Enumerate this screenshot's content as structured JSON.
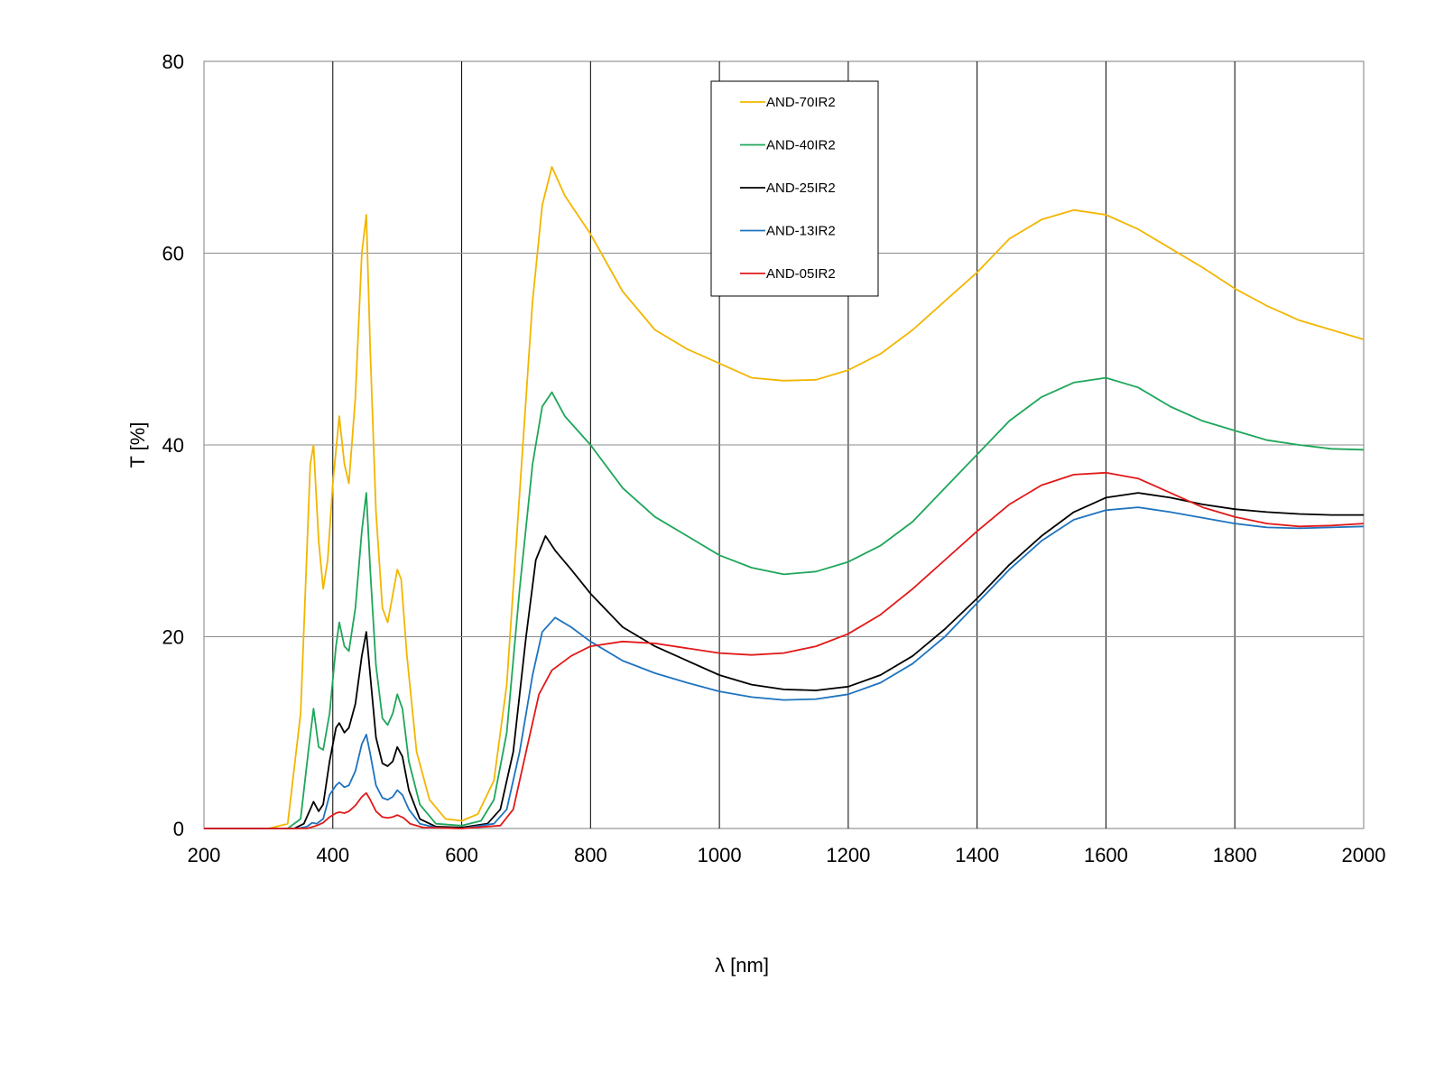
{
  "chart_data": {
    "type": "line",
    "title": "",
    "xlabel": "λ [nm]",
    "ylabel": "T [%]",
    "xlim": [
      200,
      2000
    ],
    "ylim": [
      0,
      80
    ],
    "xticks": [
      200,
      400,
      600,
      800,
      1000,
      1200,
      1400,
      1600,
      1800,
      2000
    ],
    "yticks": [
      0,
      20,
      40,
      60,
      80
    ],
    "grid": true,
    "legend_position": "top-center",
    "series": [
      {
        "name": "AND-70IR2",
        "color": "#f2b600",
        "points": [
          [
            200,
            0
          ],
          [
            300,
            0
          ],
          [
            330,
            0.5
          ],
          [
            350,
            12
          ],
          [
            365,
            38
          ],
          [
            370,
            40
          ],
          [
            378,
            30
          ],
          [
            385,
            25
          ],
          [
            392,
            28
          ],
          [
            400,
            36
          ],
          [
            410,
            43
          ],
          [
            418,
            38
          ],
          [
            425,
            36
          ],
          [
            435,
            45
          ],
          [
            445,
            60
          ],
          [
            452,
            64
          ],
          [
            458,
            50
          ],
          [
            467,
            33
          ],
          [
            477,
            23
          ],
          [
            485,
            21.5
          ],
          [
            492,
            24
          ],
          [
            500,
            27
          ],
          [
            506,
            26
          ],
          [
            515,
            18
          ],
          [
            530,
            8
          ],
          [
            550,
            3
          ],
          [
            575,
            1
          ],
          [
            600,
            0.8
          ],
          [
            625,
            1.5
          ],
          [
            650,
            5
          ],
          [
            670,
            15
          ],
          [
            690,
            35
          ],
          [
            710,
            55
          ],
          [
            725,
            65
          ],
          [
            740,
            69
          ],
          [
            760,
            66
          ],
          [
            800,
            62
          ],
          [
            850,
            56
          ],
          [
            900,
            52
          ],
          [
            950,
            50
          ],
          [
            1000,
            48.5
          ],
          [
            1050,
            47
          ],
          [
            1100,
            46.7
          ],
          [
            1150,
            46.8
          ],
          [
            1200,
            47.8
          ],
          [
            1250,
            49.5
          ],
          [
            1300,
            52
          ],
          [
            1350,
            55
          ],
          [
            1400,
            58
          ],
          [
            1450,
            61.5
          ],
          [
            1500,
            63.5
          ],
          [
            1550,
            64.5
          ],
          [
            1600,
            64
          ],
          [
            1650,
            62.5
          ],
          [
            1700,
            60.5
          ],
          [
            1750,
            58.5
          ],
          [
            1800,
            56.3
          ],
          [
            1850,
            54.5
          ],
          [
            1900,
            53
          ],
          [
            1950,
            52
          ],
          [
            2000,
            51
          ]
        ]
      },
      {
        "name": "AND-40IR2",
        "color": "#1ea65a",
        "points": [
          [
            200,
            0
          ],
          [
            330,
            0
          ],
          [
            350,
            1
          ],
          [
            362,
            8
          ],
          [
            370,
            12.5
          ],
          [
            378,
            8.5
          ],
          [
            385,
            8.2
          ],
          [
            395,
            12
          ],
          [
            405,
            19
          ],
          [
            410,
            21.5
          ],
          [
            418,
            19
          ],
          [
            425,
            18.5
          ],
          [
            435,
            23
          ],
          [
            445,
            31
          ],
          [
            452,
            35
          ],
          [
            458,
            27
          ],
          [
            467,
            17
          ],
          [
            477,
            11.5
          ],
          [
            485,
            10.8
          ],
          [
            493,
            12
          ],
          [
            500,
            14
          ],
          [
            508,
            12.5
          ],
          [
            518,
            7
          ],
          [
            535,
            2.5
          ],
          [
            560,
            0.5
          ],
          [
            600,
            0.3
          ],
          [
            630,
            0.8
          ],
          [
            650,
            3
          ],
          [
            670,
            10
          ],
          [
            690,
            25
          ],
          [
            710,
            38
          ],
          [
            725,
            44
          ],
          [
            740,
            45.5
          ],
          [
            760,
            43
          ],
          [
            800,
            40
          ],
          [
            850,
            35.5
          ],
          [
            900,
            32.5
          ],
          [
            950,
            30.5
          ],
          [
            1000,
            28.5
          ],
          [
            1050,
            27.2
          ],
          [
            1100,
            26.5
          ],
          [
            1150,
            26.8
          ],
          [
            1200,
            27.8
          ],
          [
            1250,
            29.5
          ],
          [
            1300,
            32
          ],
          [
            1350,
            35.5
          ],
          [
            1400,
            39
          ],
          [
            1450,
            42.5
          ],
          [
            1500,
            45
          ],
          [
            1550,
            46.5
          ],
          [
            1600,
            47
          ],
          [
            1650,
            46
          ],
          [
            1700,
            44
          ],
          [
            1750,
            42.5
          ],
          [
            1800,
            41.5
          ],
          [
            1850,
            40.5
          ],
          [
            1900,
            40
          ],
          [
            1950,
            39.6
          ],
          [
            2000,
            39.5
          ]
        ]
      },
      {
        "name": "AND-25IR2",
        "color": "#000000",
        "points": [
          [
            200,
            0
          ],
          [
            340,
            0
          ],
          [
            355,
            0.5
          ],
          [
            365,
            2
          ],
          [
            370,
            2.8
          ],
          [
            378,
            1.8
          ],
          [
            385,
            2.5
          ],
          [
            395,
            7
          ],
          [
            405,
            10.5
          ],
          [
            410,
            11
          ],
          [
            418,
            10
          ],
          [
            425,
            10.5
          ],
          [
            435,
            13
          ],
          [
            445,
            18
          ],
          [
            452,
            20.5
          ],
          [
            458,
            16
          ],
          [
            467,
            9.5
          ],
          [
            477,
            6.8
          ],
          [
            485,
            6.5
          ],
          [
            493,
            7
          ],
          [
            500,
            8.5
          ],
          [
            508,
            7.5
          ],
          [
            518,
            4
          ],
          [
            535,
            1
          ],
          [
            560,
            0.2
          ],
          [
            600,
            0.1
          ],
          [
            640,
            0.5
          ],
          [
            660,
            2
          ],
          [
            680,
            8
          ],
          [
            700,
            20
          ],
          [
            715,
            28
          ],
          [
            730,
            30.5
          ],
          [
            745,
            29
          ],
          [
            770,
            27
          ],
          [
            800,
            24.5
          ],
          [
            850,
            21
          ],
          [
            900,
            19
          ],
          [
            950,
            17.5
          ],
          [
            1000,
            16
          ],
          [
            1050,
            15
          ],
          [
            1100,
            14.5
          ],
          [
            1150,
            14.4
          ],
          [
            1200,
            14.8
          ],
          [
            1250,
            16
          ],
          [
            1300,
            18
          ],
          [
            1350,
            20.8
          ],
          [
            1400,
            24
          ],
          [
            1450,
            27.5
          ],
          [
            1500,
            30.5
          ],
          [
            1550,
            33
          ],
          [
            1600,
            34.5
          ],
          [
            1650,
            35
          ],
          [
            1700,
            34.5
          ],
          [
            1750,
            33.8
          ],
          [
            1800,
            33.3
          ],
          [
            1850,
            33
          ],
          [
            1900,
            32.8
          ],
          [
            1950,
            32.7
          ],
          [
            2000,
            32.7
          ]
        ]
      },
      {
        "name": "AND-13IR2",
        "color": "#1e73be",
        "points": [
          [
            200,
            0
          ],
          [
            345,
            0
          ],
          [
            360,
            0.2
          ],
          [
            368,
            0.6
          ],
          [
            375,
            0.5
          ],
          [
            385,
            1
          ],
          [
            395,
            3.5
          ],
          [
            405,
            4.5
          ],
          [
            410,
            4.8
          ],
          [
            418,
            4.3
          ],
          [
            425,
            4.5
          ],
          [
            435,
            6
          ],
          [
            445,
            8.8
          ],
          [
            452,
            9.8
          ],
          [
            458,
            7.8
          ],
          [
            467,
            4.5
          ],
          [
            477,
            3.2
          ],
          [
            485,
            3
          ],
          [
            493,
            3.3
          ],
          [
            500,
            4
          ],
          [
            508,
            3.5
          ],
          [
            518,
            2
          ],
          [
            535,
            0.5
          ],
          [
            560,
            0.1
          ],
          [
            600,
            0
          ],
          [
            650,
            0.5
          ],
          [
            670,
            2
          ],
          [
            690,
            8
          ],
          [
            710,
            16
          ],
          [
            725,
            20.5
          ],
          [
            745,
            22
          ],
          [
            770,
            21
          ],
          [
            800,
            19.5
          ],
          [
            850,
            17.5
          ],
          [
            900,
            16.2
          ],
          [
            950,
            15.2
          ],
          [
            1000,
            14.3
          ],
          [
            1050,
            13.7
          ],
          [
            1100,
            13.4
          ],
          [
            1150,
            13.5
          ],
          [
            1200,
            14
          ],
          [
            1250,
            15.2
          ],
          [
            1300,
            17.2
          ],
          [
            1350,
            20
          ],
          [
            1400,
            23.5
          ],
          [
            1450,
            27
          ],
          [
            1500,
            30
          ],
          [
            1550,
            32.2
          ],
          [
            1600,
            33.2
          ],
          [
            1650,
            33.5
          ],
          [
            1700,
            33
          ],
          [
            1750,
            32.4
          ],
          [
            1800,
            31.8
          ],
          [
            1850,
            31.4
          ],
          [
            1900,
            31.3
          ],
          [
            1950,
            31.4
          ],
          [
            2000,
            31.5
          ]
        ]
      },
      {
        "name": "AND-05IR2",
        "color": "#e11919",
        "points": [
          [
            200,
            0
          ],
          [
            360,
            0
          ],
          [
            375,
            0.3
          ],
          [
            385,
            0.6
          ],
          [
            395,
            1.2
          ],
          [
            405,
            1.6
          ],
          [
            410,
            1.7
          ],
          [
            418,
            1.6
          ],
          [
            425,
            1.8
          ],
          [
            435,
            2.4
          ],
          [
            445,
            3.3
          ],
          [
            452,
            3.7
          ],
          [
            458,
            3
          ],
          [
            467,
            1.8
          ],
          [
            477,
            1.2
          ],
          [
            485,
            1.1
          ],
          [
            493,
            1.2
          ],
          [
            500,
            1.4
          ],
          [
            510,
            1.1
          ],
          [
            520,
            0.5
          ],
          [
            540,
            0.1
          ],
          [
            600,
            0
          ],
          [
            660,
            0.3
          ],
          [
            680,
            2
          ],
          [
            700,
            8
          ],
          [
            720,
            14
          ],
          [
            740,
            16.5
          ],
          [
            770,
            18
          ],
          [
            800,
            19
          ],
          [
            850,
            19.5
          ],
          [
            900,
            19.3
          ],
          [
            950,
            18.8
          ],
          [
            1000,
            18.3
          ],
          [
            1050,
            18.1
          ],
          [
            1100,
            18.3
          ],
          [
            1150,
            19
          ],
          [
            1200,
            20.3
          ],
          [
            1250,
            22.3
          ],
          [
            1300,
            25
          ],
          [
            1350,
            28
          ],
          [
            1400,
            31
          ],
          [
            1450,
            33.8
          ],
          [
            1500,
            35.8
          ],
          [
            1550,
            36.9
          ],
          [
            1600,
            37.1
          ],
          [
            1650,
            36.5
          ],
          [
            1700,
            35
          ],
          [
            1750,
            33.5
          ],
          [
            1800,
            32.5
          ],
          [
            1850,
            31.8
          ],
          [
            1900,
            31.5
          ],
          [
            1950,
            31.6
          ],
          [
            2000,
            31.8
          ]
        ]
      }
    ]
  }
}
